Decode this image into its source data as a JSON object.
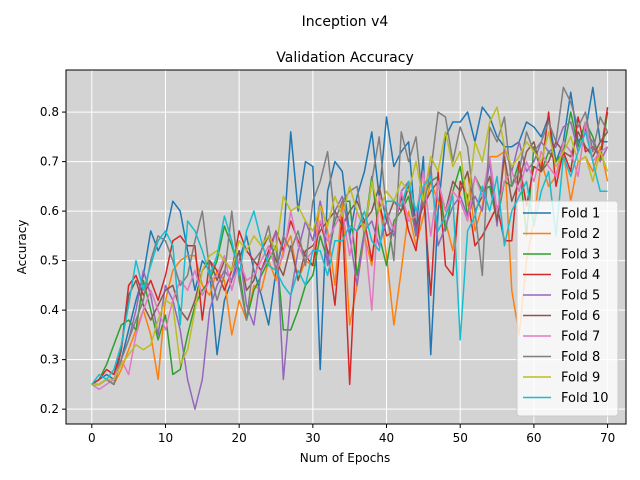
{
  "chart_data": {
    "type": "line",
    "suptitle": "Inception v4",
    "title": "Validation Accuracy",
    "xlabel": "Num of Epochs",
    "ylabel": "Accuracy",
    "xlim": [
      -3.5,
      72.5
    ],
    "ylim": [
      0.17,
      0.885
    ],
    "xticks": [
      0,
      10,
      20,
      30,
      40,
      50,
      60,
      70
    ],
    "yticks": [
      0.2,
      0.3,
      0.4,
      0.5,
      0.6,
      0.7,
      0.8
    ],
    "grid": true,
    "background": "#d3d3d3",
    "legend_position": "lower-right",
    "x_start": 0,
    "series": [
      {
        "name": "Fold 1",
        "color": "#1f77b4",
        "values": [
          0.25,
          0.26,
          0.27,
          0.26,
          0.3,
          0.36,
          0.42,
          0.47,
          0.56,
          0.52,
          0.55,
          0.62,
          0.6,
          0.52,
          0.44,
          0.5,
          0.48,
          0.31,
          0.42,
          0.46,
          0.5,
          0.55,
          0.48,
          0.43,
          0.37,
          0.48,
          0.54,
          0.76,
          0.6,
          0.7,
          0.69,
          0.28,
          0.64,
          0.7,
          0.68,
          0.55,
          0.63,
          0.68,
          0.76,
          0.63,
          0.79,
          0.69,
          0.72,
          0.74,
          0.56,
          0.71,
          0.31,
          0.6,
          0.75,
          0.78,
          0.78,
          0.8,
          0.74,
          0.81,
          0.79,
          0.75,
          0.73,
          0.73,
          0.74,
          0.78,
          0.77,
          0.75,
          0.79,
          0.7,
          0.74,
          0.84,
          0.74,
          0.76,
          0.85,
          0.74,
          0.74
        ]
      },
      {
        "name": "Fold 2",
        "color": "#ff7f0e",
        "values": [
          0.25,
          0.25,
          0.26,
          0.25,
          0.28,
          0.32,
          0.36,
          0.4,
          0.35,
          0.26,
          0.42,
          0.48,
          0.5,
          0.51,
          0.51,
          0.45,
          0.43,
          0.48,
          0.46,
          0.35,
          0.42,
          0.38,
          0.45,
          0.44,
          0.5,
          0.46,
          0.52,
          0.55,
          0.46,
          0.5,
          0.49,
          0.62,
          0.56,
          0.45,
          0.62,
          0.37,
          0.45,
          0.55,
          0.49,
          0.62,
          0.51,
          0.37,
          0.48,
          0.6,
          0.53,
          0.59,
          0.66,
          0.62,
          0.58,
          0.52,
          0.64,
          0.68,
          0.56,
          0.61,
          0.71,
          0.71,
          0.72,
          0.44,
          0.35,
          0.5,
          0.58,
          0.7,
          0.65,
          0.67,
          0.72,
          0.62,
          0.7,
          0.71,
          0.68,
          0.73,
          0.66
        ]
      },
      {
        "name": "Fold 3",
        "color": "#2ca02c",
        "values": [
          0.25,
          0.26,
          0.29,
          0.33,
          0.37,
          0.38,
          0.36,
          0.46,
          0.4,
          0.34,
          0.39,
          0.27,
          0.28,
          0.35,
          0.41,
          0.44,
          0.46,
          0.5,
          0.57,
          0.53,
          0.48,
          0.38,
          0.44,
          0.47,
          0.5,
          0.53,
          0.36,
          0.36,
          0.4,
          0.45,
          0.47,
          0.55,
          0.5,
          0.58,
          0.62,
          0.62,
          0.47,
          0.56,
          0.67,
          0.55,
          0.49,
          0.58,
          0.6,
          0.63,
          0.55,
          0.63,
          0.66,
          0.67,
          0.56,
          0.64,
          0.69,
          0.59,
          0.67,
          0.64,
          0.65,
          0.58,
          0.66,
          0.65,
          0.7,
          0.55,
          0.73,
          0.68,
          0.72,
          0.7,
          0.72,
          0.8,
          0.73,
          0.78,
          0.75,
          0.7,
          0.8
        ]
      },
      {
        "name": "Fold 4",
        "color": "#d62728",
        "values": [
          0.25,
          0.26,
          0.28,
          0.27,
          0.32,
          0.45,
          0.47,
          0.43,
          0.46,
          0.42,
          0.47,
          0.54,
          0.55,
          0.53,
          0.53,
          0.38,
          0.5,
          0.48,
          0.44,
          0.48,
          0.56,
          0.52,
          0.5,
          0.48,
          0.52,
          0.56,
          0.52,
          0.58,
          0.54,
          0.51,
          0.49,
          0.58,
          0.52,
          0.41,
          0.59,
          0.25,
          0.56,
          0.58,
          0.5,
          0.62,
          0.55,
          0.56,
          0.63,
          0.56,
          0.52,
          0.64,
          0.43,
          0.68,
          0.49,
          0.47,
          0.66,
          0.63,
          0.53,
          0.55,
          0.58,
          0.61,
          0.54,
          0.54,
          0.7,
          0.61,
          0.69,
          0.68,
          0.8,
          0.65,
          0.72,
          0.68,
          0.79,
          0.72,
          0.73,
          0.71,
          0.81
        ]
      },
      {
        "name": "Fold 5",
        "color": "#9467bd",
        "values": [
          0.25,
          0.25,
          0.26,
          0.25,
          0.3,
          0.34,
          0.4,
          0.48,
          0.43,
          0.35,
          0.45,
          0.42,
          0.36,
          0.26,
          0.2,
          0.26,
          0.4,
          0.45,
          0.48,
          0.46,
          0.52,
          0.41,
          0.37,
          0.48,
          0.51,
          0.56,
          0.26,
          0.43,
          0.52,
          0.58,
          0.54,
          0.62,
          0.49,
          0.6,
          0.63,
          0.55,
          0.45,
          0.56,
          0.58,
          0.53,
          0.58,
          0.55,
          0.64,
          0.66,
          0.55,
          0.64,
          0.69,
          0.53,
          0.57,
          0.61,
          0.63,
          0.59,
          0.63,
          0.6,
          0.7,
          0.57,
          0.73,
          0.68,
          0.74,
          0.68,
          0.7,
          0.74,
          0.72,
          0.73,
          0.77,
          0.78,
          0.72,
          0.76,
          0.74,
          0.7,
          0.73
        ]
      },
      {
        "name": "Fold 6",
        "color": "#8c564b",
        "values": [
          0.25,
          0.25,
          0.26,
          0.25,
          0.32,
          0.43,
          0.46,
          0.41,
          0.38,
          0.41,
          0.44,
          0.45,
          0.4,
          0.38,
          0.42,
          0.48,
          0.5,
          0.46,
          0.5,
          0.48,
          0.52,
          0.44,
          0.46,
          0.52,
          0.55,
          0.5,
          0.47,
          0.53,
          0.46,
          0.52,
          0.53,
          0.56,
          0.58,
          0.6,
          0.57,
          0.6,
          0.62,
          0.58,
          0.6,
          0.65,
          0.58,
          0.62,
          0.6,
          0.65,
          0.57,
          0.61,
          0.64,
          0.66,
          0.6,
          0.66,
          0.64,
          0.68,
          0.6,
          0.63,
          0.67,
          0.58,
          0.71,
          0.62,
          0.66,
          0.72,
          0.74,
          0.68,
          0.7,
          0.74,
          0.72,
          0.71,
          0.76,
          0.73,
          0.71,
          0.74,
          0.76
        ]
      },
      {
        "name": "Fold 7",
        "color": "#e377c2",
        "values": [
          0.25,
          0.24,
          0.25,
          0.26,
          0.3,
          0.27,
          0.35,
          0.4,
          0.44,
          0.4,
          0.36,
          0.42,
          0.46,
          0.44,
          0.48,
          0.43,
          0.46,
          0.47,
          0.51,
          0.44,
          0.5,
          0.46,
          0.47,
          0.5,
          0.53,
          0.48,
          0.51,
          0.6,
          0.53,
          0.5,
          0.52,
          0.58,
          0.54,
          0.57,
          0.6,
          0.51,
          0.6,
          0.56,
          0.4,
          0.63,
          0.6,
          0.56,
          0.64,
          0.58,
          0.59,
          0.68,
          0.55,
          0.66,
          0.6,
          0.64,
          0.62,
          0.58,
          0.67,
          0.63,
          0.71,
          0.6,
          0.66,
          0.68,
          0.64,
          0.7,
          0.66,
          0.72,
          0.69,
          0.67,
          0.74,
          0.72,
          0.67,
          0.78,
          0.7,
          0.72,
          0.73
        ]
      },
      {
        "name": "Fold 8",
        "color": "#7f7f7f",
        "values": [
          0.25,
          0.25,
          0.26,
          0.25,
          0.3,
          0.34,
          0.38,
          0.42,
          0.5,
          0.55,
          0.54,
          0.5,
          0.45,
          0.47,
          0.54,
          0.6,
          0.48,
          0.42,
          0.47,
          0.6,
          0.46,
          0.38,
          0.5,
          0.52,
          0.57,
          0.48,
          0.55,
          0.52,
          0.56,
          0.49,
          0.62,
          0.66,
          0.72,
          0.58,
          0.62,
          0.64,
          0.65,
          0.55,
          0.66,
          0.75,
          0.6,
          0.5,
          0.76,
          0.7,
          0.75,
          0.61,
          0.68,
          0.8,
          0.79,
          0.7,
          0.77,
          0.73,
          0.6,
          0.47,
          0.77,
          0.74,
          0.79,
          0.65,
          0.68,
          0.76,
          0.72,
          0.74,
          0.78,
          0.74,
          0.85,
          0.82,
          0.77,
          0.8,
          0.72,
          0.79,
          0.76
        ]
      },
      {
        "name": "Fold 9",
        "color": "#bcbd22",
        "values": [
          0.25,
          0.25,
          0.26,
          0.26,
          0.29,
          0.31,
          0.33,
          0.32,
          0.33,
          0.38,
          0.42,
          0.41,
          0.29,
          0.32,
          0.4,
          0.48,
          0.51,
          0.52,
          0.5,
          0.48,
          0.54,
          0.52,
          0.55,
          0.53,
          0.55,
          0.52,
          0.63,
          0.6,
          0.61,
          0.58,
          0.56,
          0.61,
          0.57,
          0.63,
          0.59,
          0.65,
          0.6,
          0.56,
          0.66,
          0.6,
          0.64,
          0.62,
          0.66,
          0.64,
          0.7,
          0.62,
          0.71,
          0.68,
          0.76,
          0.69,
          0.72,
          0.61,
          0.74,
          0.7,
          0.78,
          0.81,
          0.73,
          0.69,
          0.71,
          0.74,
          0.72,
          0.7,
          0.76,
          0.69,
          0.72,
          0.75,
          0.7,
          0.71,
          0.66,
          0.72,
          0.68
        ]
      },
      {
        "name": "Fold 10",
        "color": "#17becf",
        "values": [
          0.25,
          0.27,
          0.26,
          0.28,
          0.33,
          0.41,
          0.5,
          0.44,
          0.49,
          0.54,
          0.56,
          0.53,
          0.37,
          0.58,
          0.56,
          0.52,
          0.47,
          0.51,
          0.59,
          0.54,
          0.47,
          0.56,
          0.6,
          0.54,
          0.49,
          0.48,
          0.45,
          0.43,
          0.48,
          0.45,
          0.52,
          0.52,
          0.47,
          0.54,
          0.54,
          0.57,
          0.56,
          0.6,
          0.54,
          0.52,
          0.62,
          0.62,
          0.61,
          0.66,
          0.6,
          0.65,
          0.67,
          0.56,
          0.59,
          0.63,
          0.34,
          0.56,
          0.59,
          0.65,
          0.6,
          0.67,
          0.53,
          0.6,
          0.63,
          0.66,
          0.57,
          0.64,
          0.68,
          0.55,
          0.71,
          0.67,
          0.72,
          0.76,
          0.7,
          0.64,
          0.64
        ]
      }
    ]
  }
}
